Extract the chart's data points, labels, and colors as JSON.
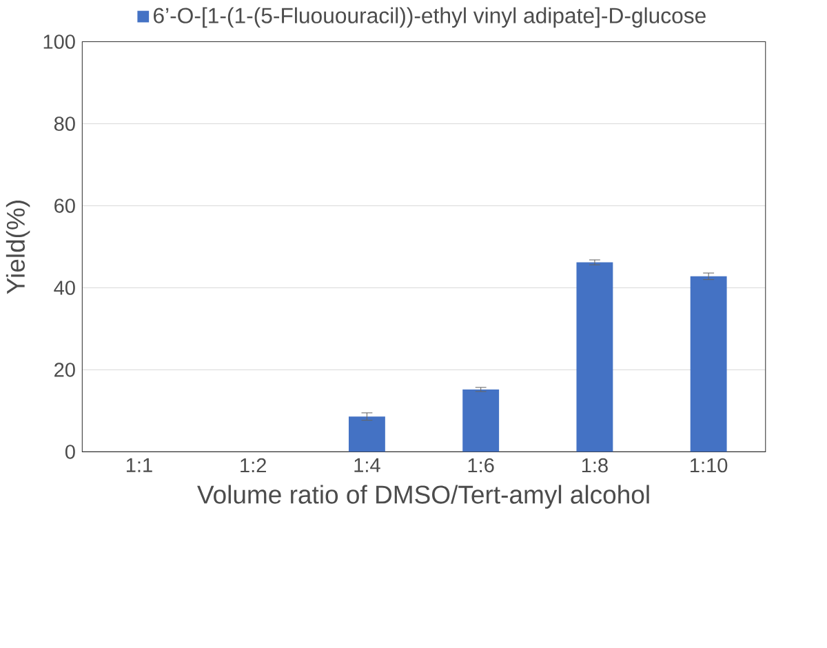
{
  "chart_data": {
    "type": "bar",
    "xlabel": "Volume ratio of DMSO/Tert-amyl alcohol",
    "ylabel": "Yield(%)",
    "categories": [
      "1:1",
      "1:2",
      "1:4",
      "1:6",
      "1:8",
      "1:10"
    ],
    "series": [
      {
        "name": "6’-O-[1-(1-(5-Fluououracil))-ethyl vinyl adipate]-D-glucose",
        "color": "#4472c4",
        "values": [
          0,
          0,
          8.6,
          15.2,
          46.2,
          42.8
        ],
        "errors": [
          null,
          null,
          0.9,
          0.5,
          0.6,
          0.8
        ]
      }
    ],
    "ylim": [
      0,
      100
    ],
    "yticks": [
      0,
      20,
      40,
      60,
      80,
      100
    ],
    "grid": "y",
    "legend": "top"
  }
}
